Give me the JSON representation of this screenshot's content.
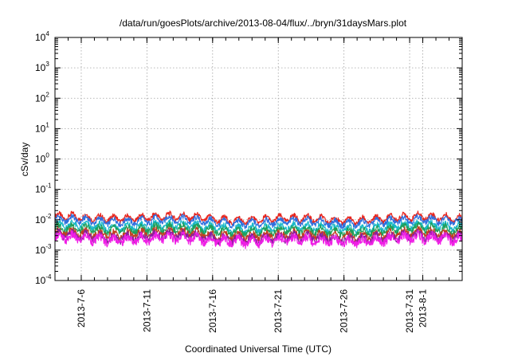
{
  "chart_data": {
    "type": "line",
    "title": "/data/run/goesPlots/archive/2013-08-04/flux/../bryn/31daysMars.plot",
    "xlabel": "Coordinated Universal Time (UTC)",
    "ylabel": "cSv/day",
    "yscale": "log",
    "ylim": [
      0.0001,
      10000
    ],
    "yticks": [
      {
        "base": "10",
        "exp": "-4",
        "value": 0.0001
      },
      {
        "base": "10",
        "exp": "-3",
        "value": 0.001
      },
      {
        "base": "10",
        "exp": "-2",
        "value": 0.01
      },
      {
        "base": "10",
        "exp": "-1",
        "value": 0.1
      },
      {
        "base": "10",
        "exp": "0",
        "value": 1
      },
      {
        "base": "10",
        "exp": "1",
        "value": 10
      },
      {
        "base": "10",
        "exp": "2",
        "value": 100
      },
      {
        "base": "10",
        "exp": "3",
        "value": 1000
      },
      {
        "base": "10",
        "exp": "4",
        "value": 10000
      }
    ],
    "xlim": [
      "2013-07-04",
      "2013-08-04"
    ],
    "xticks": [
      {
        "label": "2013-7-6",
        "date": "2013-07-06"
      },
      {
        "label": "2013-7-11",
        "date": "2013-07-11"
      },
      {
        "label": "2013-7-16",
        "date": "2013-07-16"
      },
      {
        "label": "2013-7-21",
        "date": "2013-07-21"
      },
      {
        "label": "2013-7-26",
        "date": "2013-07-26"
      },
      {
        "label": "2013-7-31",
        "date": "2013-07-31"
      },
      {
        "label": "2013-8-1",
        "date": "2013-08-01"
      }
    ],
    "grid": true,
    "legend": "none",
    "series": [
      {
        "color": "#e8261e",
        "level": 0.011,
        "amplitude": 0.16
      },
      {
        "color": "#2f6fde",
        "level": 0.0088,
        "amplitude": 0.17
      },
      {
        "color": "#19b8c8",
        "level": 0.0058,
        "amplitude": 0.19
      },
      {
        "color": "#1fa05a",
        "level": 0.0046,
        "amplitude": 0.2
      },
      {
        "color": "#c04020",
        "level": 0.0033,
        "amplitude": 0.22
      },
      {
        "color": "#8a1fa0",
        "level": 0.0026,
        "amplitude": 0.24
      },
      {
        "color": "#f01ee6",
        "level": 0.0022,
        "amplitude": 0.28
      }
    ]
  }
}
